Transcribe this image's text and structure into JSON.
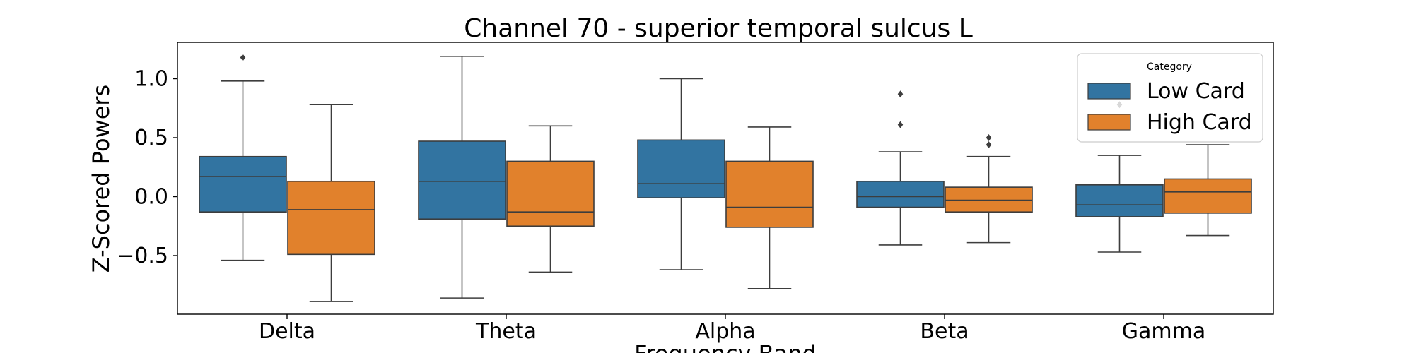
{
  "chart_data": {
    "type": "box",
    "title": "Channel 70 - superior temporal sulcus L",
    "xlabel": "Frequency Band",
    "ylabel": "Z-Scored Powers",
    "ylim": [
      -1.0,
      1.3
    ],
    "yticks": [
      1.0,
      0.5,
      0.0,
      -0.5
    ],
    "ytick_labels": [
      "1.0",
      "0.5",
      "0.0",
      "−0.5"
    ],
    "categories": [
      "Delta",
      "Theta",
      "Alpha",
      "Beta",
      "Gamma"
    ],
    "legend": {
      "title": "Category",
      "placement": "upper right"
    },
    "grid": false,
    "series": [
      {
        "name": "Low Card",
        "color": "#3274a1",
        "boxes": [
          {
            "whisker_low": -0.54,
            "q1": -0.13,
            "median": 0.17,
            "q3": 0.34,
            "whisker_high": 0.98,
            "outliers": [
              1.18
            ]
          },
          {
            "whisker_low": -0.86,
            "q1": -0.19,
            "median": 0.13,
            "q3": 0.47,
            "whisker_high": 1.19,
            "outliers": []
          },
          {
            "whisker_low": -0.62,
            "q1": -0.01,
            "median": 0.11,
            "q3": 0.48,
            "whisker_high": 1.0,
            "outliers": []
          },
          {
            "whisker_low": -0.41,
            "q1": -0.09,
            "median": 0.0,
            "q3": 0.13,
            "whisker_high": 0.38,
            "outliers": [
              0.61,
              0.87
            ]
          },
          {
            "whisker_low": -0.47,
            "q1": -0.17,
            "median": -0.07,
            "q3": 0.1,
            "whisker_high": 0.35,
            "outliers": [
              0.78
            ]
          }
        ]
      },
      {
        "name": "High Card",
        "color": "#e1812c",
        "boxes": [
          {
            "whisker_low": -0.89,
            "q1": -0.49,
            "median": -0.11,
            "q3": 0.13,
            "whisker_high": 0.78,
            "outliers": []
          },
          {
            "whisker_low": -0.64,
            "q1": -0.25,
            "median": -0.13,
            "q3": 0.3,
            "whisker_high": 0.6,
            "outliers": []
          },
          {
            "whisker_low": -0.78,
            "q1": -0.26,
            "median": -0.09,
            "q3": 0.3,
            "whisker_high": 0.59,
            "outliers": []
          },
          {
            "whisker_low": -0.39,
            "q1": -0.13,
            "median": -0.03,
            "q3": 0.08,
            "whisker_high": 0.34,
            "outliers": [
              0.44,
              0.5
            ]
          },
          {
            "whisker_low": -0.33,
            "q1": -0.14,
            "median": 0.04,
            "q3": 0.15,
            "whisker_high": 0.44,
            "outliers": []
          }
        ]
      }
    ]
  }
}
